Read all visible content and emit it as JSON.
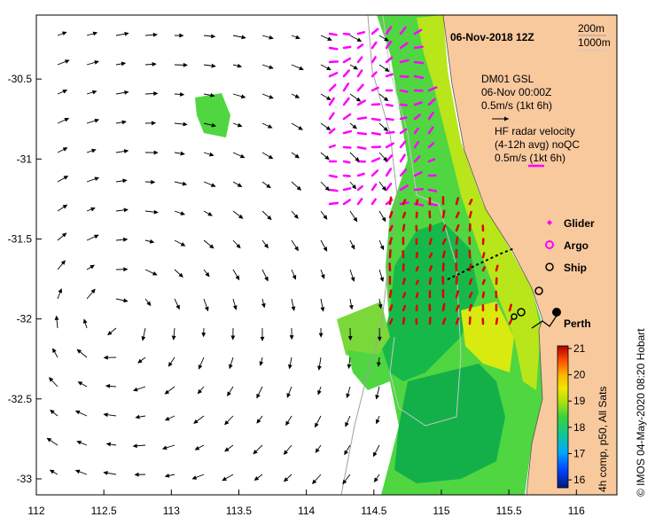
{
  "map": {
    "title": "06-Nov-2018 12Z",
    "scale_labels": [
      "200m",
      "1000m"
    ],
    "gsl_legend": {
      "lines": [
        "DM01 GSL",
        "06-Nov 00:00Z",
        "0.5m/s (1kt 6h)"
      ]
    },
    "hf_legend": {
      "lines": [
        "HF radar velocity",
        "(4-12h avg) noQC",
        "0.5m/s (1kt 6h)"
      ]
    },
    "platform_legend": [
      {
        "label": "Glider",
        "marker": "magenta-diamond"
      },
      {
        "label": "Argo",
        "marker": "magenta-circle"
      },
      {
        "label": "Ship",
        "marker": "black-open-circle"
      }
    ],
    "place_label": "Perth",
    "credit": "© IMOS 04-May-2020 08:20 Hobart",
    "x_ticks": [
      "112",
      "112.5",
      "113",
      "113.5",
      "114",
      "114.5",
      "115",
      "115.5",
      "116"
    ],
    "y_ticks": [
      "-30.5",
      "-31",
      "-31.5",
      "-32",
      "-32.5",
      "-33"
    ],
    "lon_range": [
      112,
      116.3
    ],
    "lat_range": [
      -33.1,
      -30.1
    ],
    "colorbar": {
      "label": "4h comp, p50, All Sats",
      "ticks": [
        "21",
        "20",
        "19",
        "18",
        "17",
        "16"
      ],
      "range": [
        15.7,
        21.1
      ]
    },
    "colors": {
      "land": "#f9c99e",
      "sst_warm": "#f2e600",
      "sst_mid": "#4fd641",
      "sst_cool": "#13b04a",
      "gsl_arrow": "#000000",
      "hf_arrow": "#ff00ff",
      "ship_track": "#000000",
      "red_vectors": "#e00000"
    }
  }
}
